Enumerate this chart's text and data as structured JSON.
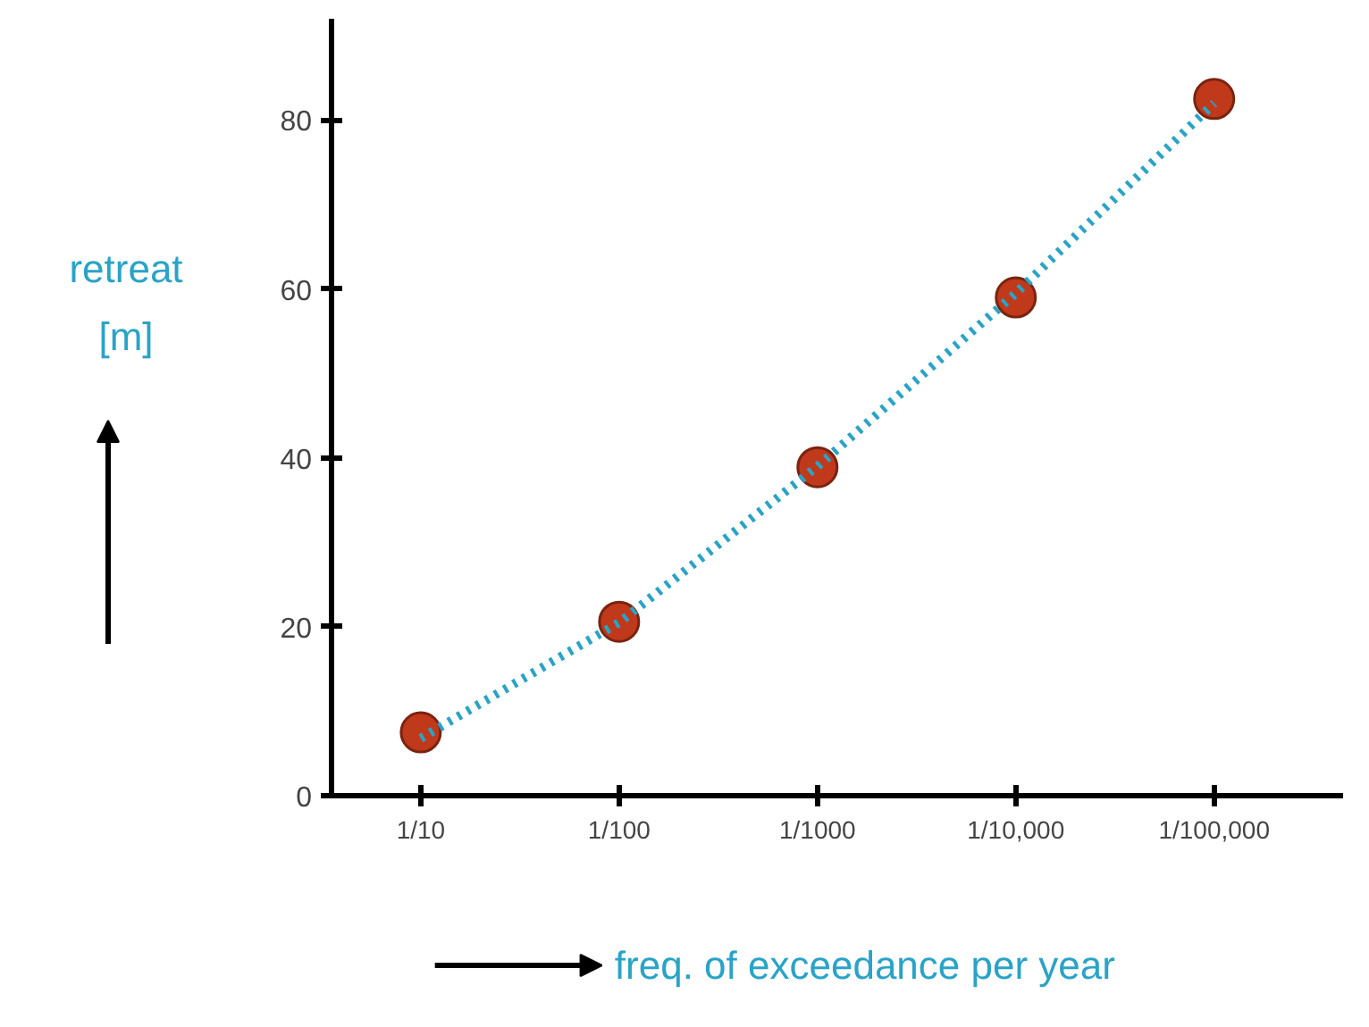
{
  "chart_data": {
    "type": "scatter",
    "xlabel": "freq. of exceedance per year",
    "ylabel": "retreat [m]",
    "categories": [
      "1/10",
      "1/100",
      "1/1000",
      "1/10,000",
      "1/100,000"
    ],
    "ylim": [
      0,
      92
    ],
    "yticks": [
      0,
      20,
      40,
      60,
      80
    ],
    "series": [
      {
        "color": "#c0391b",
        "values": [
          7.5,
          20.6,
          38.9,
          59,
          82.5
        ]
      },
      {
        "type": "line",
        "marker": "none",
        "color": "#2aa3c6",
        "line_style": "dotted",
        "values": [
          6.8,
          20.5,
          39,
          59.5,
          82
        ]
      }
    ],
    "marker": "circle",
    "grid": false
  }
}
